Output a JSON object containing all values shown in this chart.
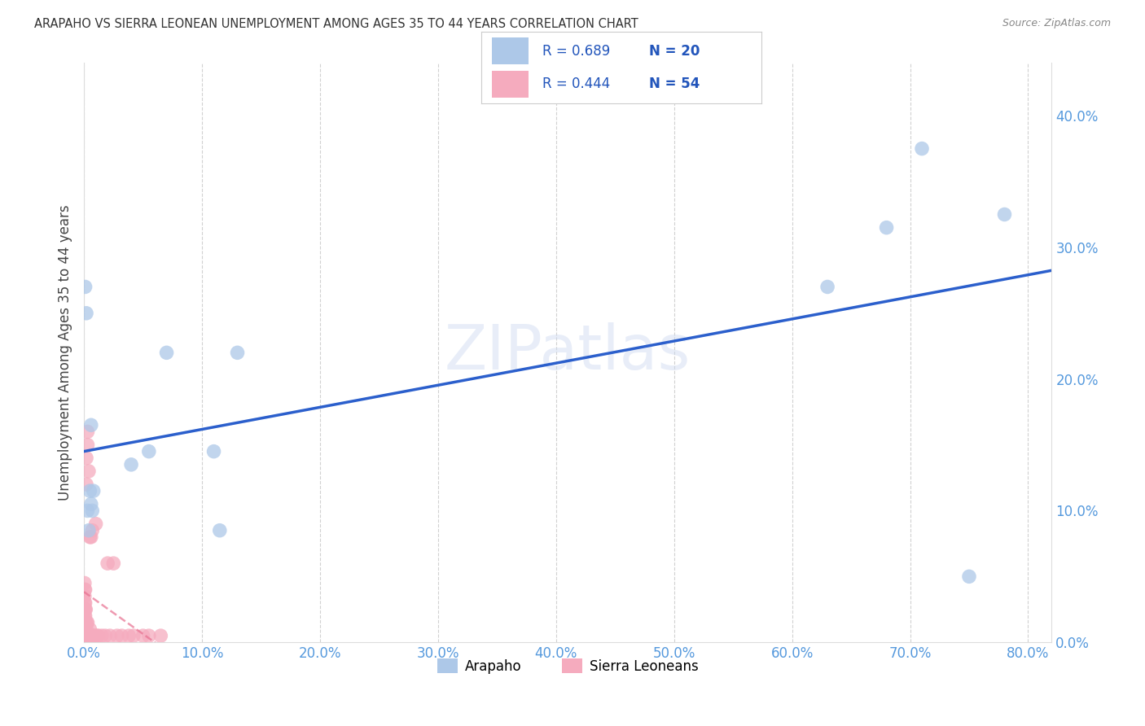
{
  "title": "ARAPAHO VS SIERRA LEONEAN UNEMPLOYMENT AMONG AGES 35 TO 44 YEARS CORRELATION CHART",
  "source": "Source: ZipAtlas.com",
  "ylabel": "Unemployment Among Ages 35 to 44 years",
  "xlim": [
    0.0,
    0.82
  ],
  "ylim": [
    0.0,
    0.44
  ],
  "legend_label_1": "Arapaho",
  "legend_label_2": "Sierra Leoneans",
  "R1": 0.689,
  "N1": 20,
  "R2": 0.444,
  "N2": 54,
  "arapaho_color": "#adc8e8",
  "sierra_color": "#f5abbe",
  "arapaho_line_color": "#2b5fcc",
  "sierra_line_color": "#e87090",
  "watermark": "ZIPatlas",
  "arapaho_x": [
    0.001,
    0.002,
    0.003,
    0.004,
    0.005,
    0.006,
    0.006,
    0.007,
    0.008,
    0.04,
    0.055,
    0.07,
    0.11,
    0.115,
    0.13,
    0.63,
    0.68,
    0.71,
    0.75,
    0.78
  ],
  "arapaho_y": [
    0.27,
    0.25,
    0.1,
    0.085,
    0.115,
    0.105,
    0.165,
    0.1,
    0.115,
    0.135,
    0.145,
    0.22,
    0.145,
    0.085,
    0.22,
    0.27,
    0.315,
    0.375,
    0.05,
    0.325
  ],
  "sierra_x": [
    0.0005,
    0.0005,
    0.0005,
    0.0005,
    0.0005,
    0.0005,
    0.0005,
    0.0005,
    0.0005,
    0.001,
    0.001,
    0.001,
    0.001,
    0.001,
    0.001,
    0.001,
    0.0015,
    0.0015,
    0.0015,
    0.002,
    0.002,
    0.002,
    0.002,
    0.0025,
    0.003,
    0.003,
    0.003,
    0.003,
    0.004,
    0.004,
    0.005,
    0.005,
    0.005,
    0.006,
    0.006,
    0.007,
    0.007,
    0.008,
    0.009,
    0.01,
    0.011,
    0.012,
    0.015,
    0.018,
    0.02,
    0.022,
    0.025,
    0.028,
    0.032,
    0.038,
    0.042,
    0.05,
    0.055,
    0.065
  ],
  "sierra_y": [
    0.005,
    0.01,
    0.015,
    0.02,
    0.025,
    0.03,
    0.035,
    0.04,
    0.045,
    0.005,
    0.01,
    0.015,
    0.02,
    0.025,
    0.03,
    0.04,
    0.005,
    0.015,
    0.025,
    0.005,
    0.01,
    0.12,
    0.14,
    0.015,
    0.005,
    0.015,
    0.15,
    0.16,
    0.005,
    0.13,
    0.005,
    0.01,
    0.08,
    0.005,
    0.08,
    0.005,
    0.085,
    0.005,
    0.005,
    0.09,
    0.005,
    0.005,
    0.005,
    0.005,
    0.06,
    0.005,
    0.06,
    0.005,
    0.005,
    0.005,
    0.005,
    0.005,
    0.005,
    0.005
  ]
}
